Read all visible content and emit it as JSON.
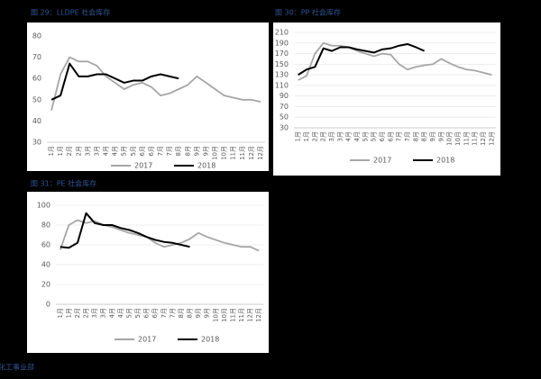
{
  "chart_data": [
    {
      "type": "line",
      "title": "图 29：LLDPE 社会库存",
      "categories": [
        "1月",
        "1月",
        "2月",
        "2月",
        "3月",
        "3月",
        "4月",
        "4月",
        "5月",
        "5月",
        "6月",
        "6月",
        "7月",
        "7月",
        "8月",
        "8月",
        "9月",
        "9月",
        "10月",
        "10月",
        "11月",
        "11月",
        "12月",
        "12月"
      ],
      "series": [
        {
          "name": "2017",
          "color": "#a6a6a6",
          "values": [
            45,
            62,
            70,
            68,
            68,
            66,
            61,
            58,
            55,
            57,
            58,
            56,
            52,
            53,
            55,
            57,
            61,
            58,
            55,
            52,
            51,
            50,
            50,
            49
          ]
        },
        {
          "name": "2018",
          "color": "#000000",
          "values": [
            50,
            52,
            67,
            61,
            61,
            62,
            62,
            60,
            58,
            59,
            59,
            61,
            62,
            61,
            60,
            null,
            null,
            null,
            null,
            null,
            null,
            null,
            null,
            null
          ]
        }
      ],
      "ylim": [
        30,
        80
      ],
      "yticks": [
        30,
        40,
        50,
        60,
        70,
        80
      ],
      "grid": false,
      "legend": "bottom"
    },
    {
      "type": "line",
      "title": "图 30：PP 社会库存",
      "categories": [
        "1月",
        "1月",
        "2月",
        "2月",
        "3月",
        "3月",
        "4月",
        "4月",
        "5月",
        "5月",
        "6月",
        "6月",
        "7月",
        "7月",
        "8月",
        "8月",
        "9月",
        "9月",
        "10月",
        "10月",
        "11月",
        "11月",
        "12月",
        "12月"
      ],
      "series": [
        {
          "name": "2017",
          "color": "#a6a6a6",
          "values": [
            120,
            128,
            170,
            190,
            185,
            185,
            182,
            175,
            170,
            165,
            170,
            168,
            150,
            140,
            145,
            148,
            150,
            160,
            152,
            145,
            140,
            138,
            134,
            130
          ]
        },
        {
          "name": "2018",
          "color": "#000000",
          "values": [
            130,
            140,
            145,
            180,
            175,
            182,
            182,
            178,
            175,
            172,
            178,
            180,
            185,
            188,
            182,
            175,
            null,
            null,
            null,
            null,
            null,
            null,
            null,
            null
          ]
        }
      ],
      "ylim": [
        30,
        210
      ],
      "yticks": [
        30,
        50,
        70,
        90,
        110,
        130,
        150,
        170,
        190,
        210
      ],
      "grid": true,
      "legend": "bottom"
    },
    {
      "type": "line",
      "title": "图 31：PE 社会库存",
      "categories": [
        "1月",
        "1月",
        "2月",
        "2月",
        "3月",
        "3月",
        "4月",
        "4月",
        "5月",
        "5月",
        "6月",
        "6月",
        "7月",
        "7月",
        "8月",
        "8月",
        "9月",
        "9月",
        "10月",
        "10月",
        "11月",
        "11月",
        "12月",
        "12月"
      ],
      "series": [
        {
          "name": "2017",
          "color": "#a6a6a6",
          "values": [
            55,
            80,
            85,
            82,
            84,
            80,
            78,
            75,
            72,
            70,
            68,
            62,
            58,
            60,
            62,
            66,
            72,
            68,
            65,
            62,
            60,
            58,
            58,
            54
          ]
        },
        {
          "name": "2018",
          "color": "#000000",
          "values": [
            58,
            57,
            62,
            92,
            82,
            80,
            80,
            77,
            75,
            72,
            68,
            65,
            63,
            62,
            60,
            58,
            null,
            null,
            null,
            null,
            null,
            null,
            null,
            null
          ]
        }
      ],
      "ylim": [
        0,
        100
      ],
      "yticks": [
        0,
        20,
        40,
        60,
        80,
        100
      ],
      "grid": true,
      "legend": "bottom"
    }
  ],
  "footer": "数据来源：银河期货能源化工事业部"
}
